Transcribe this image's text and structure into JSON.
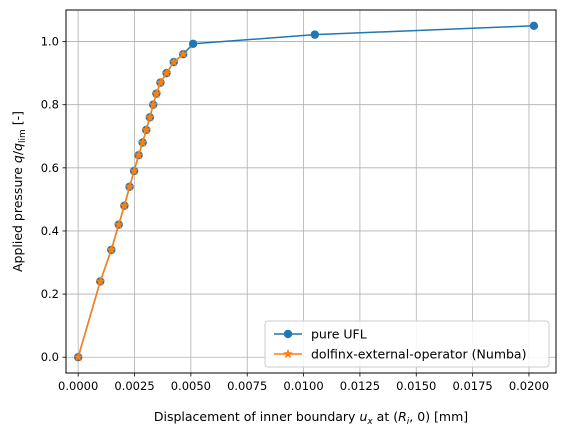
{
  "chart_data": {
    "type": "line",
    "title": "",
    "xlabel": "Displacement of inner boundary u_x at (R_i, 0) [mm]",
    "ylabel": "Applied pressure q/q_lim [-]",
    "xlim": [
      -0.00054,
      0.0212
    ],
    "ylim": [
      -0.05,
      1.1
    ],
    "x_ticks": [
      0.0,
      0.0025,
      0.005,
      0.0075,
      0.01,
      0.0125,
      0.015,
      0.0175,
      0.02
    ],
    "x_tick_labels": [
      "0.0000",
      "0.0025",
      "0.0050",
      "0.0075",
      "0.0100",
      "0.0125",
      "0.0150",
      "0.0175",
      "0.0200"
    ],
    "y_ticks": [
      0.0,
      0.2,
      0.4,
      0.6,
      0.8,
      1.0
    ],
    "y_tick_labels": [
      "0.0",
      "0.2",
      "0.4",
      "0.6",
      "0.8",
      "1.0"
    ],
    "grid": true,
    "legend_position": "lower-right",
    "series": [
      {
        "name": "pure UFL",
        "color": "#1f77b4",
        "marker": "circle",
        "x": [
          0.0,
          0.00098,
          0.00147,
          0.0018,
          0.00205,
          0.00228,
          0.00248,
          0.00268,
          0.00286,
          0.00302,
          0.00318,
          0.00333,
          0.00347,
          0.00365,
          0.00392,
          0.00424,
          0.00466,
          0.0051,
          0.0105,
          0.02022
        ],
        "y": [
          0.0,
          0.24,
          0.34,
          0.42,
          0.48,
          0.54,
          0.59,
          0.64,
          0.68,
          0.72,
          0.76,
          0.8,
          0.835,
          0.87,
          0.9,
          0.935,
          0.96,
          0.993,
          1.022,
          1.05
        ]
      },
      {
        "name": "dolfinx-external-operator (Numba)",
        "color": "#ff7f0e",
        "marker": "star",
        "x": [
          0.0,
          0.00098,
          0.00147,
          0.0018,
          0.00205,
          0.00228,
          0.00248,
          0.00268,
          0.00286,
          0.00302,
          0.00318,
          0.00333,
          0.00347,
          0.00365,
          0.00392,
          0.00424,
          0.00466
        ],
        "y": [
          0.0,
          0.24,
          0.34,
          0.42,
          0.48,
          0.54,
          0.59,
          0.64,
          0.68,
          0.72,
          0.76,
          0.8,
          0.835,
          0.87,
          0.9,
          0.935,
          0.96
        ]
      }
    ]
  }
}
